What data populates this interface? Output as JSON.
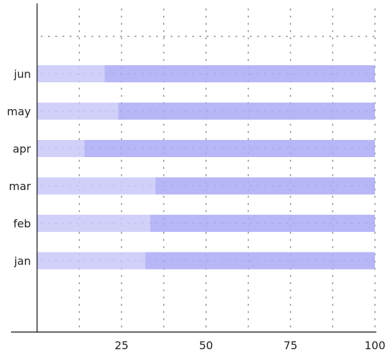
{
  "chart_data": {
    "type": "bar",
    "orientation": "horizontal",
    "stacked": true,
    "title": "",
    "xlabel": "",
    "ylabel": "",
    "categories": [
      "jan",
      "feb",
      "mar",
      "apr",
      "may",
      "jun"
    ],
    "series": [
      {
        "values": [
          32,
          33.5,
          35,
          14,
          24,
          20
        ]
      },
      {
        "values": [
          68,
          66.5,
          65,
          86,
          76,
          80
        ]
      }
    ],
    "xlim": [
      0,
      100
    ],
    "xticks": [
      "25",
      "50",
      "75",
      "100"
    ],
    "grid": true,
    "grid_style": "dotted",
    "legend": "none",
    "colors": {
      "series_1": "#c8c8f8",
      "series_2": "#aaaaf6",
      "grid": "#888888",
      "axis": "#000000",
      "text": "#222222"
    }
  }
}
